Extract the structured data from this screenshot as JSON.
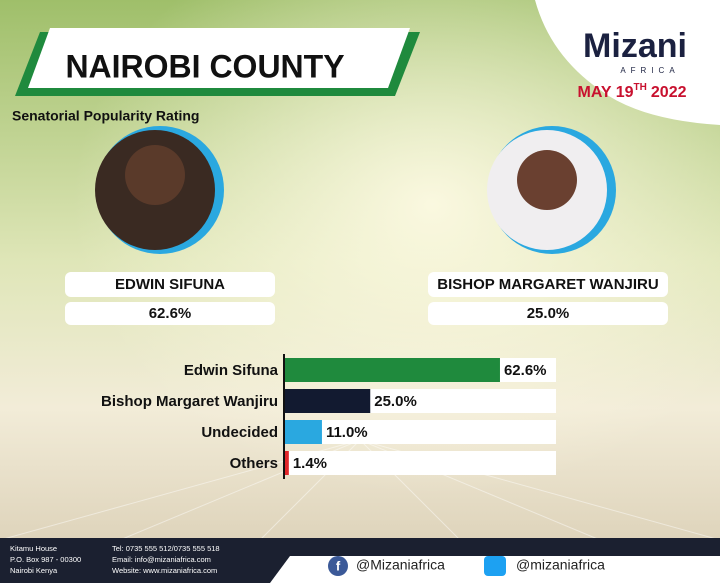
{
  "header": {
    "title": "NAIROBI COUNTY",
    "subtitle": "Senatorial Popularity Rating",
    "logo": "Mizani",
    "logo_tagline": "AFRICA",
    "date": [
      "MAY 19",
      "TH",
      "2022"
    ]
  },
  "candidates": [
    {
      "name": "EDWIN SIFUNA",
      "rating": "62.6%"
    },
    {
      "name": "BISHOP MARGARET WANJIRU",
      "rating": "25.0%"
    }
  ],
  "chart_data": {
    "type": "hbar",
    "categories": [
      "Edwin Sifuna",
      "Bishop Margaret Wanjiru",
      "Undecided",
      "Others"
    ],
    "values": [
      62.6,
      25.0,
      11.0,
      1.4
    ],
    "value_labels": [
      "62.6%",
      "25.0%",
      "11.0%",
      "1.4%"
    ],
    "colors": [
      "#1f8a3d",
      "#121a30",
      "#2aa8e0",
      "#e0262a"
    ]
  },
  "footer": {
    "address": [
      "Kitamu House",
      "P.O. Box 987 - 00300",
      "Nairobi Kenya"
    ],
    "contacts": [
      "Tel: 0735 555 512/0735 555 518",
      "Email: info@mizaniafrica.com",
      "Website: www.mizaniafrica.com"
    ],
    "facebook": "@Mizaniafrica",
    "twitter": "@mizaniafrica"
  }
}
